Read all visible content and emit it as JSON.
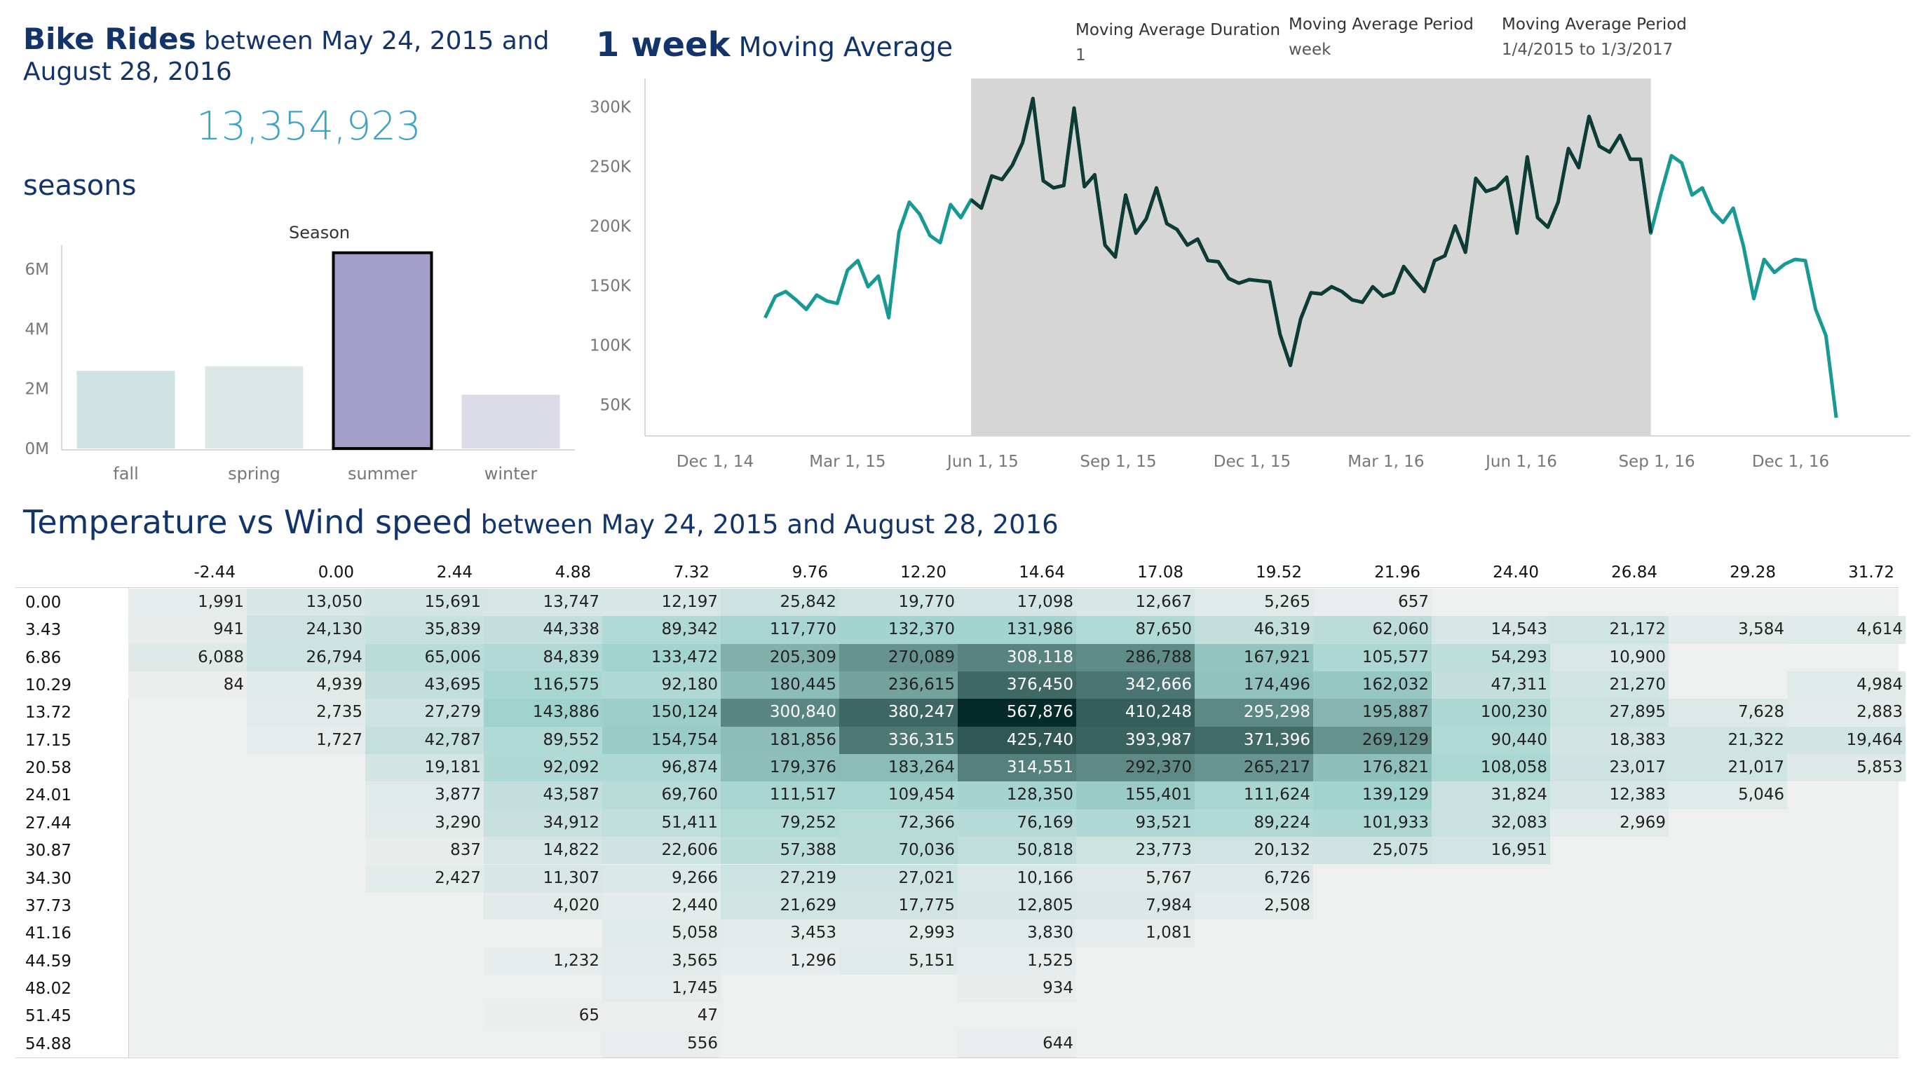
{
  "header": {
    "bike_title_bold": "Bike Rides",
    "bike_title_rest": " between May 24, 2015 and August 28, 2016",
    "total_rides": "13,354,923",
    "seasons_title": "seasons",
    "season_axis_label": "Season",
    "ma_title_bold": "1 week",
    "ma_title_rest": " Moving Average",
    "params": [
      {
        "label": "Moving Average Duration",
        "value": "1"
      },
      {
        "label": "Moving Average Period",
        "value": "week"
      },
      {
        "label": "Moving Average Period",
        "value": "1/4/2015 to 1/3/2017"
      }
    ],
    "temp_title": "Temperature vs Wind speed",
    "temp_title_sub": " between May 24, 2015 and August 28, 2016"
  },
  "colors": {
    "navy": "#12346a",
    "total": "#3fa3c6",
    "line_light": "#189a94",
    "line_dark": "#0f3a36",
    "highlight_band": "#d6d6d6",
    "heat_low": "#eeefef",
    "heat_high": "#062a27"
  },
  "chart_data": [
    {
      "type": "bar",
      "title": "Season",
      "categories": [
        "fall",
        "spring",
        "summer",
        "winter"
      ],
      "values": [
        2.6,
        2.75,
        6.55,
        1.8
      ],
      "yticks": [
        "0M",
        "2M",
        "4M",
        "6M"
      ],
      "ytick_values": [
        0,
        2,
        4,
        6
      ],
      "ylim": [
        0,
        6.8
      ],
      "unit": "millions",
      "colors": [
        "#cfe2e4",
        "#dde8e6",
        "#a49fc9",
        "#dcdbe8"
      ],
      "highlighted": "summer"
    },
    {
      "type": "line",
      "title": "1 week Moving Average",
      "yticks": [
        "50K",
        "100K",
        "150K",
        "200K",
        "250K",
        "300K"
      ],
      "ytick_values": [
        50000,
        100000,
        150000,
        200000,
        250000,
        300000
      ],
      "ylim": [
        25000,
        325000
      ],
      "xticks": [
        "Dec 1, 14",
        "Mar 1, 15",
        "Jun 1, 15",
        "Sep 1, 15",
        "Dec 1, 15",
        "Mar 1, 16",
        "Jun 1, 16",
        "Sep 1, 16",
        "Dec 1, 16"
      ],
      "xtick_dates": [
        "2014-12-01",
        "2015-03-01",
        "2015-06-01",
        "2015-09-01",
        "2015-12-01",
        "2016-03-01",
        "2016-06-01",
        "2016-09-01",
        "2016-12-01"
      ],
      "highlight_range": [
        "2015-05-24",
        "2016-08-28"
      ],
      "series": [
        {
          "values": [
            [
              "2015-01-04",
              123000
            ],
            [
              "2015-01-11",
              141000
            ],
            [
              "2015-01-18",
              145000
            ],
            [
              "2015-01-25",
              138000
            ],
            [
              "2015-02-01",
              130000
            ],
            [
              "2015-02-08",
              142000
            ],
            [
              "2015-02-15",
              137000
            ],
            [
              "2015-02-22",
              135000
            ],
            [
              "2015-03-01",
              163000
            ],
            [
              "2015-03-08",
              171000
            ],
            [
              "2015-03-15",
              149000
            ],
            [
              "2015-03-22",
              158000
            ],
            [
              "2015-03-29",
              123000
            ],
            [
              "2015-04-05",
              195000
            ],
            [
              "2015-04-12",
              220000
            ],
            [
              "2015-04-19",
              210000
            ],
            [
              "2015-04-26",
              192000
            ],
            [
              "2015-05-03",
              186000
            ],
            [
              "2015-05-10",
              218000
            ],
            [
              "2015-05-17",
              207000
            ],
            [
              "2015-05-24",
              222000
            ],
            [
              "2015-05-31",
              215000
            ],
            [
              "2015-06-07",
              242000
            ],
            [
              "2015-06-14",
              239000
            ],
            [
              "2015-06-21",
              251000
            ],
            [
              "2015-06-28",
              270000
            ],
            [
              "2015-07-05",
              307000
            ],
            [
              "2015-07-12",
              238000
            ],
            [
              "2015-07-19",
              232000
            ],
            [
              "2015-07-26",
              234000
            ],
            [
              "2015-08-02",
              299000
            ],
            [
              "2015-08-09",
              233000
            ],
            [
              "2015-08-16",
              243000
            ],
            [
              "2015-08-23",
              184000
            ],
            [
              "2015-08-30",
              174000
            ],
            [
              "2015-09-06",
              226000
            ],
            [
              "2015-09-13",
              194000
            ],
            [
              "2015-09-20",
              206000
            ],
            [
              "2015-09-27",
              232000
            ],
            [
              "2015-10-04",
              202000
            ],
            [
              "2015-10-11",
              197000
            ],
            [
              "2015-10-18",
              184000
            ],
            [
              "2015-10-25",
              189000
            ],
            [
              "2015-11-01",
              171000
            ],
            [
              "2015-11-08",
              170000
            ],
            [
              "2015-11-15",
              156000
            ],
            [
              "2015-11-22",
              152000
            ],
            [
              "2015-11-29",
              155000
            ],
            [
              "2015-12-06",
              154000
            ],
            [
              "2015-12-13",
              153000
            ],
            [
              "2015-12-20",
              109000
            ],
            [
              "2015-12-27",
              83000
            ],
            [
              "2016-01-03",
              122000
            ],
            [
              "2016-01-10",
              144000
            ],
            [
              "2016-01-17",
              143000
            ],
            [
              "2016-01-24",
              149000
            ],
            [
              "2016-01-31",
              145000
            ],
            [
              "2016-02-07",
              138000
            ],
            [
              "2016-02-14",
              136000
            ],
            [
              "2016-02-21",
              149000
            ],
            [
              "2016-02-28",
              141000
            ],
            [
              "2016-03-06",
              144000
            ],
            [
              "2016-03-13",
              166000
            ],
            [
              "2016-03-20",
              155000
            ],
            [
              "2016-03-27",
              145000
            ],
            [
              "2016-04-03",
              171000
            ],
            [
              "2016-04-10",
              175000
            ],
            [
              "2016-04-17",
              200000
            ],
            [
              "2016-04-24",
              178000
            ],
            [
              "2016-05-01",
              240000
            ],
            [
              "2016-05-08",
              229000
            ],
            [
              "2016-05-15",
              232000
            ],
            [
              "2016-05-22",
              241000
            ],
            [
              "2016-05-29",
              194000
            ],
            [
              "2016-06-05",
              258000
            ],
            [
              "2016-06-12",
              207000
            ],
            [
              "2016-06-19",
              199000
            ],
            [
              "2016-06-26",
              220000
            ],
            [
              "2016-07-03",
              265000
            ],
            [
              "2016-07-10",
              249000
            ],
            [
              "2016-07-17",
              292000
            ],
            [
              "2016-07-24",
              267000
            ],
            [
              "2016-07-31",
              262000
            ],
            [
              "2016-08-07",
              276000
            ],
            [
              "2016-08-14",
              256000
            ],
            [
              "2016-08-21",
              256000
            ],
            [
              "2016-08-28",
              194000
            ],
            [
              "2016-09-04",
              228000
            ],
            [
              "2016-09-11",
              259000
            ],
            [
              "2016-09-18",
              253000
            ],
            [
              "2016-09-25",
              226000
            ],
            [
              "2016-10-02",
              232000
            ],
            [
              "2016-10-09",
              212000
            ],
            [
              "2016-10-16",
              203000
            ],
            [
              "2016-10-23",
              215000
            ],
            [
              "2016-10-30",
              183000
            ],
            [
              "2016-11-06",
              139000
            ],
            [
              "2016-11-13",
              172000
            ],
            [
              "2016-11-20",
              161000
            ],
            [
              "2016-11-27",
              168000
            ],
            [
              "2016-12-04",
              172000
            ],
            [
              "2016-12-11",
              171000
            ],
            [
              "2016-12-18",
              130000
            ],
            [
              "2016-12-25",
              108000
            ],
            [
              "2017-01-01",
              39000
            ]
          ]
        }
      ]
    },
    {
      "type": "heatmap",
      "title": "Temperature vs Wind speed",
      "x": [
        "-2.44",
        "0.00",
        "2.44",
        "4.88",
        "7.32",
        "9.76",
        "12.20",
        "14.64",
        "17.08",
        "19.52",
        "21.96",
        "24.40",
        "26.84",
        "29.28",
        "31.72"
      ],
      "y": [
        "0.00",
        "3.43",
        "6.86",
        "10.29",
        "13.72",
        "17.15",
        "20.58",
        "24.01",
        "27.44",
        "30.87",
        "34.30",
        "37.73",
        "41.16",
        "44.59",
        "48.02",
        "51.45",
        "54.88"
      ],
      "max": 567876,
      "values": [
        [
          1991,
          13050,
          15691,
          13747,
          12197,
          25842,
          19770,
          17098,
          12667,
          5265,
          657,
          null,
          null,
          null,
          null
        ],
        [
          941,
          24130,
          35839,
          44338,
          89342,
          117770,
          132370,
          131986,
          87650,
          46319,
          62060,
          14543,
          21172,
          3584,
          4614
        ],
        [
          6088,
          26794,
          65006,
          84839,
          133472,
          205309,
          270089,
          308118,
          286788,
          167921,
          105577,
          54293,
          10900,
          null,
          null
        ],
        [
          84,
          4939,
          43695,
          116575,
          92180,
          180445,
          236615,
          376450,
          342666,
          174496,
          162032,
          47311,
          21270,
          null,
          4984
        ],
        [
          null,
          2735,
          27279,
          143886,
          150124,
          300840,
          380247,
          567876,
          410248,
          295298,
          195887,
          100230,
          27895,
          7628,
          2883
        ],
        [
          null,
          1727,
          42787,
          89552,
          154754,
          181856,
          336315,
          425740,
          393987,
          371396,
          269129,
          90440,
          18383,
          21322,
          19464
        ],
        [
          null,
          null,
          19181,
          92092,
          96874,
          179376,
          183264,
          314551,
          292370,
          265217,
          176821,
          108058,
          23017,
          21017,
          5853
        ],
        [
          null,
          null,
          3877,
          43587,
          69760,
          111517,
          109454,
          128350,
          155401,
          111624,
          139129,
          31824,
          12383,
          5046,
          null
        ],
        [
          null,
          null,
          3290,
          34912,
          51411,
          79252,
          72366,
          76169,
          93521,
          89224,
          101933,
          32083,
          2969,
          null,
          null
        ],
        [
          null,
          null,
          837,
          14822,
          22606,
          57388,
          70036,
          50818,
          23773,
          20132,
          25075,
          16951,
          null,
          null,
          null
        ],
        [
          null,
          null,
          2427,
          11307,
          9266,
          27219,
          27021,
          10166,
          5767,
          6726,
          null,
          null,
          null,
          null,
          null
        ],
        [
          null,
          null,
          null,
          4020,
          2440,
          21629,
          17775,
          12805,
          7984,
          2508,
          null,
          null,
          null,
          null,
          null
        ],
        [
          null,
          null,
          null,
          null,
          5058,
          3453,
          2993,
          3830,
          1081,
          null,
          null,
          null,
          null,
          null,
          null
        ],
        [
          null,
          null,
          null,
          1232,
          3565,
          1296,
          5151,
          1525,
          null,
          null,
          null,
          null,
          null,
          null,
          null
        ],
        [
          null,
          null,
          null,
          null,
          1745,
          null,
          null,
          934,
          null,
          null,
          null,
          null,
          null,
          null,
          null
        ],
        [
          null,
          null,
          null,
          65,
          47,
          null,
          null,
          null,
          null,
          null,
          null,
          null,
          null,
          null,
          null
        ],
        [
          null,
          null,
          null,
          null,
          556,
          null,
          null,
          644,
          null,
          null,
          null,
          null,
          null,
          null,
          null
        ]
      ]
    }
  ]
}
